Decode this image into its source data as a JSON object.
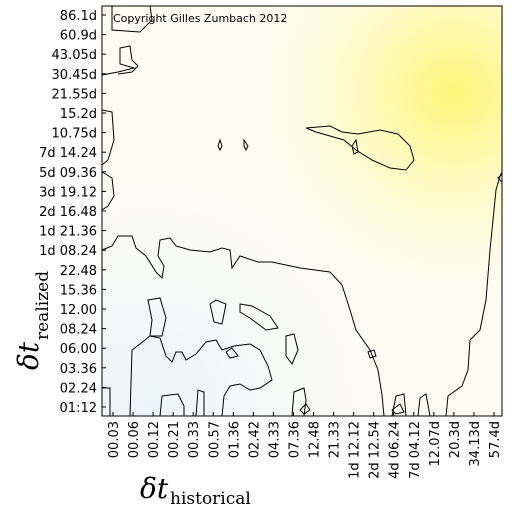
{
  "chart_data": {
    "type": "contour",
    "title": "Copyright Gilles Zumbach 2012",
    "x_label": "δt",
    "x_label_sub": "historical",
    "y_label": "δt",
    "y_label_sub": "realized",
    "x": [
      "00.03",
      "00.06",
      "00.12",
      "00.21",
      "00.33",
      "00.57",
      "01.36",
      "02.42",
      "04.33",
      "07.36",
      "12.48",
      "21.33",
      "1d 12.12",
      "2d 12.54",
      "4d 06.24",
      "7d 04.12",
      "12.07d",
      "20.3d",
      "34.13d",
      "57.4d"
    ],
    "y": [
      "86.1d",
      "60.9d",
      "43.05d",
      "30.45d",
      "21.55d",
      "15.2d",
      "10.75d",
      "7d 14.24",
      "5d 09.36",
      "3d 19.12",
      "2d 16.48",
      "1d 21.36",
      "1d 08.24",
      "22.48",
      "15.36",
      "12.00",
      "08.24",
      "06.00",
      "03.36",
      "02.24",
      "01:12"
    ]
  }
}
